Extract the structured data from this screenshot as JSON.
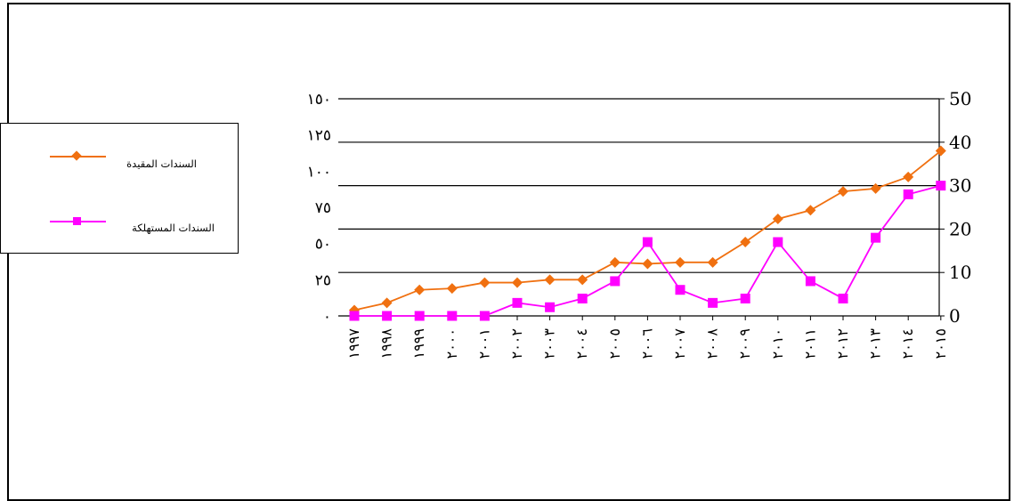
{
  "chart_data": {
    "type": "line",
    "categories": [
      "١٩٩٧",
      "١٩٩٨",
      "١٩٩٩",
      "٢٠٠٠",
      "٢٠٠١",
      "٢٠٠٢",
      "٢٠٠٣",
      "٢٠٠٤",
      "٢٠٠٥",
      "٢٠٠٦",
      "٢٠٠٧",
      "٢٠٠٨",
      "٢٠٠٩",
      "٢٠١٠",
      "٢٠١١",
      "٢٠١٢",
      "٢٠١٣",
      "٢٠١٤",
      "٢٠١٥"
    ],
    "left_axis": {
      "ticks": [
        "٠",
        "٢٥",
        "٥٠",
        "٧٥",
        "١٠٠",
        "١٢٥",
        "١٥٠"
      ],
      "ylim": [
        0,
        150
      ]
    },
    "right_axis": {
      "ticks": [
        "0",
        "10",
        "20",
        "30",
        "40",
        "50"
      ],
      "ylim": [
        0,
        50
      ]
    },
    "series": [
      {
        "name": "السندات المقيدة",
        "color": "#F07010",
        "marker": "diamond",
        "axis": "left",
        "values": [
          4,
          9,
          18,
          19,
          23,
          23,
          25,
          25,
          37,
          36,
          37,
          37,
          51,
          67,
          73,
          86,
          88,
          96,
          114
        ]
      },
      {
        "name": "السندات المستهلكة",
        "color": "#FF00FF",
        "marker": "square",
        "axis": "right",
        "values": [
          0,
          0,
          0,
          0,
          0,
          3,
          2,
          4,
          8,
          17,
          6,
          3,
          4,
          17,
          8,
          4,
          18,
          28,
          30
        ]
      }
    ],
    "grid": true,
    "legend_position": "left"
  }
}
